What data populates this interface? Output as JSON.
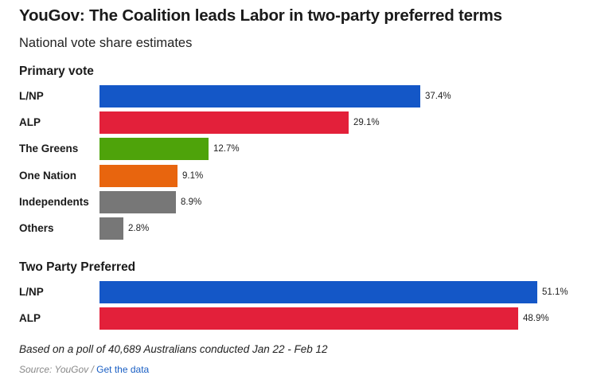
{
  "title": "YouGov: The Coalition leads Labor in two-party preferred terms",
  "subtitle": "National vote share estimates",
  "note": "Based on a poll of 40,689 Australians conducted Jan 22 - Feb 12",
  "source": {
    "prefix": "Source: YouGov / ",
    "link_label": "Get the data"
  },
  "colors": {
    "lnp": "#1457c7",
    "alp": "#e3203a",
    "greens": "#4ea30a",
    "one_nation": "#e8650e",
    "grey": "#777777"
  },
  "chart_data": [
    {
      "type": "bar",
      "orientation": "horizontal",
      "title": "Primary vote",
      "categories": [
        "L/NP",
        "ALP",
        "The Greens",
        "One Nation",
        "Independents",
        "Others"
      ],
      "values": [
        37.4,
        29.1,
        12.7,
        9.1,
        8.9,
        2.8
      ],
      "value_labels": [
        "37.4%",
        "29.1%",
        "12.7%",
        "9.1%",
        "8.9%",
        "2.8%"
      ],
      "colors": [
        "#1457c7",
        "#e3203a",
        "#4ea30a",
        "#e8650e",
        "#777777",
        "#777777"
      ],
      "xlim": [
        0,
        51.1
      ],
      "unit": "%"
    },
    {
      "type": "bar",
      "orientation": "horizontal",
      "title": "Two Party Preferred",
      "categories": [
        "L/NP",
        "ALP"
      ],
      "values": [
        51.1,
        48.9
      ],
      "value_labels": [
        "51.1%",
        "48.9%"
      ],
      "colors": [
        "#1457c7",
        "#e3203a"
      ],
      "xlim": [
        0,
        51.1
      ],
      "unit": "%"
    }
  ]
}
